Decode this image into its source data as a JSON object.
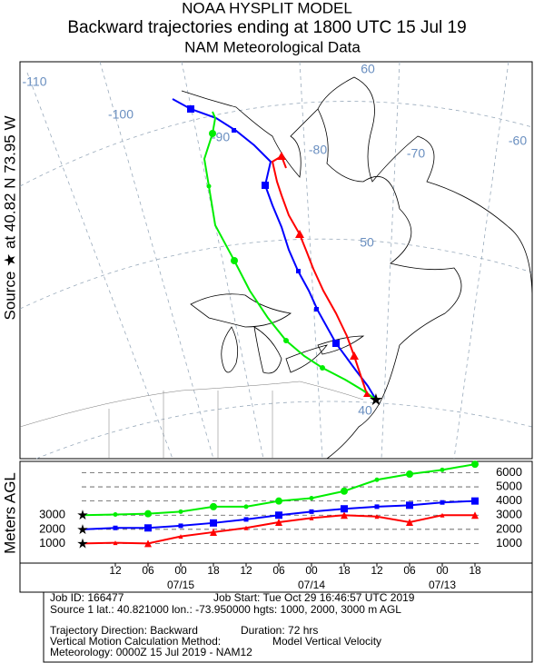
{
  "header": {
    "title": "NOAA HYSPLIT MODEL",
    "subtitle": "Backward trajectories ending at 1800 UTC 15 Jul 19",
    "data_source": "NAM  Meteorological Data"
  },
  "side_label": "Source ★ at  40.82 N  73.95 W",
  "map_labels": {
    "lon_110": "-110",
    "lon_100": "-100",
    "lon_90": "-90",
    "lon_80": "-80",
    "lon_70": "-70",
    "lon_60": "-60",
    "lat_60": "60",
    "lat_50": "50",
    "lat_40": "40"
  },
  "chart_data": {
    "type": "line",
    "ylabel": "Meters AGL",
    "x": [
      0,
      6,
      12,
      18,
      24,
      30,
      36,
      42,
      48,
      54,
      60,
      66,
      72
    ],
    "xlim": [
      0,
      72
    ],
    "xticks": [
      {
        "value": 6,
        "label": "12"
      },
      {
        "value": 12,
        "label": "06"
      },
      {
        "value": 18,
        "label": "00"
      },
      {
        "value": 24,
        "label": "18"
      },
      {
        "value": 30,
        "label": "12"
      },
      {
        "value": 36,
        "label": "06"
      },
      {
        "value": 42,
        "label": "00"
      },
      {
        "value": 48,
        "label": "18"
      },
      {
        "value": 54,
        "label": "12"
      },
      {
        "value": 60,
        "label": "06"
      },
      {
        "value": 66,
        "label": "00"
      },
      {
        "value": 72,
        "label": "18"
      }
    ],
    "xdates": [
      {
        "value": 18,
        "label": "07/15"
      },
      {
        "value": 42,
        "label": "07/14"
      },
      {
        "value": 66,
        "label": "07/13"
      }
    ],
    "ylim": [
      0,
      6800
    ],
    "yticks": [
      1000,
      2000,
      3000,
      4000,
      5000,
      6000
    ],
    "grid": true,
    "series": [
      {
        "color": "#ff0000",
        "marker": "triangle",
        "values": [
          1000,
          1050,
          1000,
          1500,
          1800,
          2100,
          2500,
          2800,
          3000,
          2900,
          2500,
          3000,
          3000
        ]
      },
      {
        "color": "#0000ff",
        "marker": "square",
        "values": [
          2000,
          2100,
          2100,
          2250,
          2450,
          2700,
          3000,
          3250,
          3450,
          3600,
          3700,
          3900,
          4000
        ]
      },
      {
        "color": "#00ee00",
        "marker": "circle",
        "values": [
          3000,
          3050,
          3100,
          3250,
          3600,
          3600,
          4000,
          4200,
          4700,
          5500,
          5900,
          6200,
          6600
        ]
      }
    ]
  },
  "footer": {
    "job_id": "Job ID: 166477",
    "job_start": "Job Start: Tue Oct 29 16:46:57 UTC 2019",
    "source": "Source 1 lat.: 40.821000  lon.: -73.950000  hgts: 1000, 2000, 3000 m AGL",
    "direction": "Trajectory Direction: Backward",
    "duration": "Duration: 72 hrs",
    "vertical_method": "Vertical Motion Calculation Method:",
    "vertical_value": "Model Vertical Velocity",
    "meteorology": "Meteorology: 0000Z 15 Jul 2019 - NAM12"
  }
}
